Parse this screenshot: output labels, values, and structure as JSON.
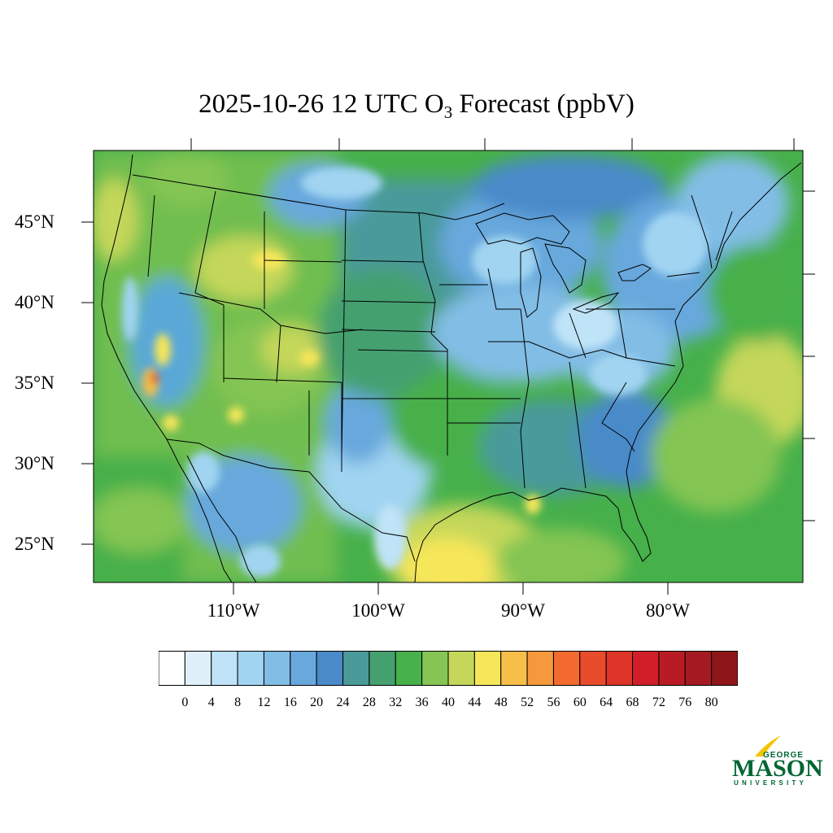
{
  "title": {
    "prefix": "2025-10-26 12 UTC O",
    "subscript": "3",
    "suffix": " Forecast (ppbV)"
  },
  "map": {
    "region": "Contiguous United States",
    "variable": "O3 surface ozone forecast",
    "units": "ppbV",
    "lat_labels": [
      "45°N",
      "40°N",
      "35°N",
      "30°N",
      "25°N"
    ],
    "lon_labels": [
      "110°W",
      "100°W",
      "90°W",
      "80°W"
    ]
  },
  "colorbar": {
    "colors": [
      "#ffffff",
      "#dff0fa",
      "#bfe3f7",
      "#a0d4f1",
      "#82bde6",
      "#68a8dd",
      "#4a8ac9",
      "#4a9a9a",
      "#45a070",
      "#46b04a",
      "#84c553",
      "#c4d75a",
      "#f6e65a",
      "#f6bf4a",
      "#f5993c",
      "#f26a2d",
      "#e84c2c",
      "#dd3528",
      "#d11f2a",
      "#b91b24",
      "#a51a21",
      "#8e1519"
    ],
    "labels": [
      "0",
      "4",
      "8",
      "12",
      "16",
      "20",
      "24",
      "28",
      "32",
      "36",
      "40",
      "44",
      "48",
      "52",
      "56",
      "60",
      "64",
      "68",
      "72",
      "76",
      "80"
    ]
  },
  "logo": {
    "line1": "GEORGE",
    "line2": "MASON",
    "line3": "UNIVERSITY",
    "accent_color": "#f2c500",
    "brand_color": "#006633"
  }
}
